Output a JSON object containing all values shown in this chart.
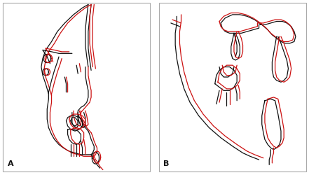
{
  "fig_width": 4.41,
  "fig_height": 2.51,
  "dpi": 100,
  "background": "#ffffff",
  "border_color": "#aaaaaa",
  "black_color": "#111111",
  "red_color": "#cc1111",
  "label_A": "A",
  "label_B": "B",
  "label_fontsize": 8
}
